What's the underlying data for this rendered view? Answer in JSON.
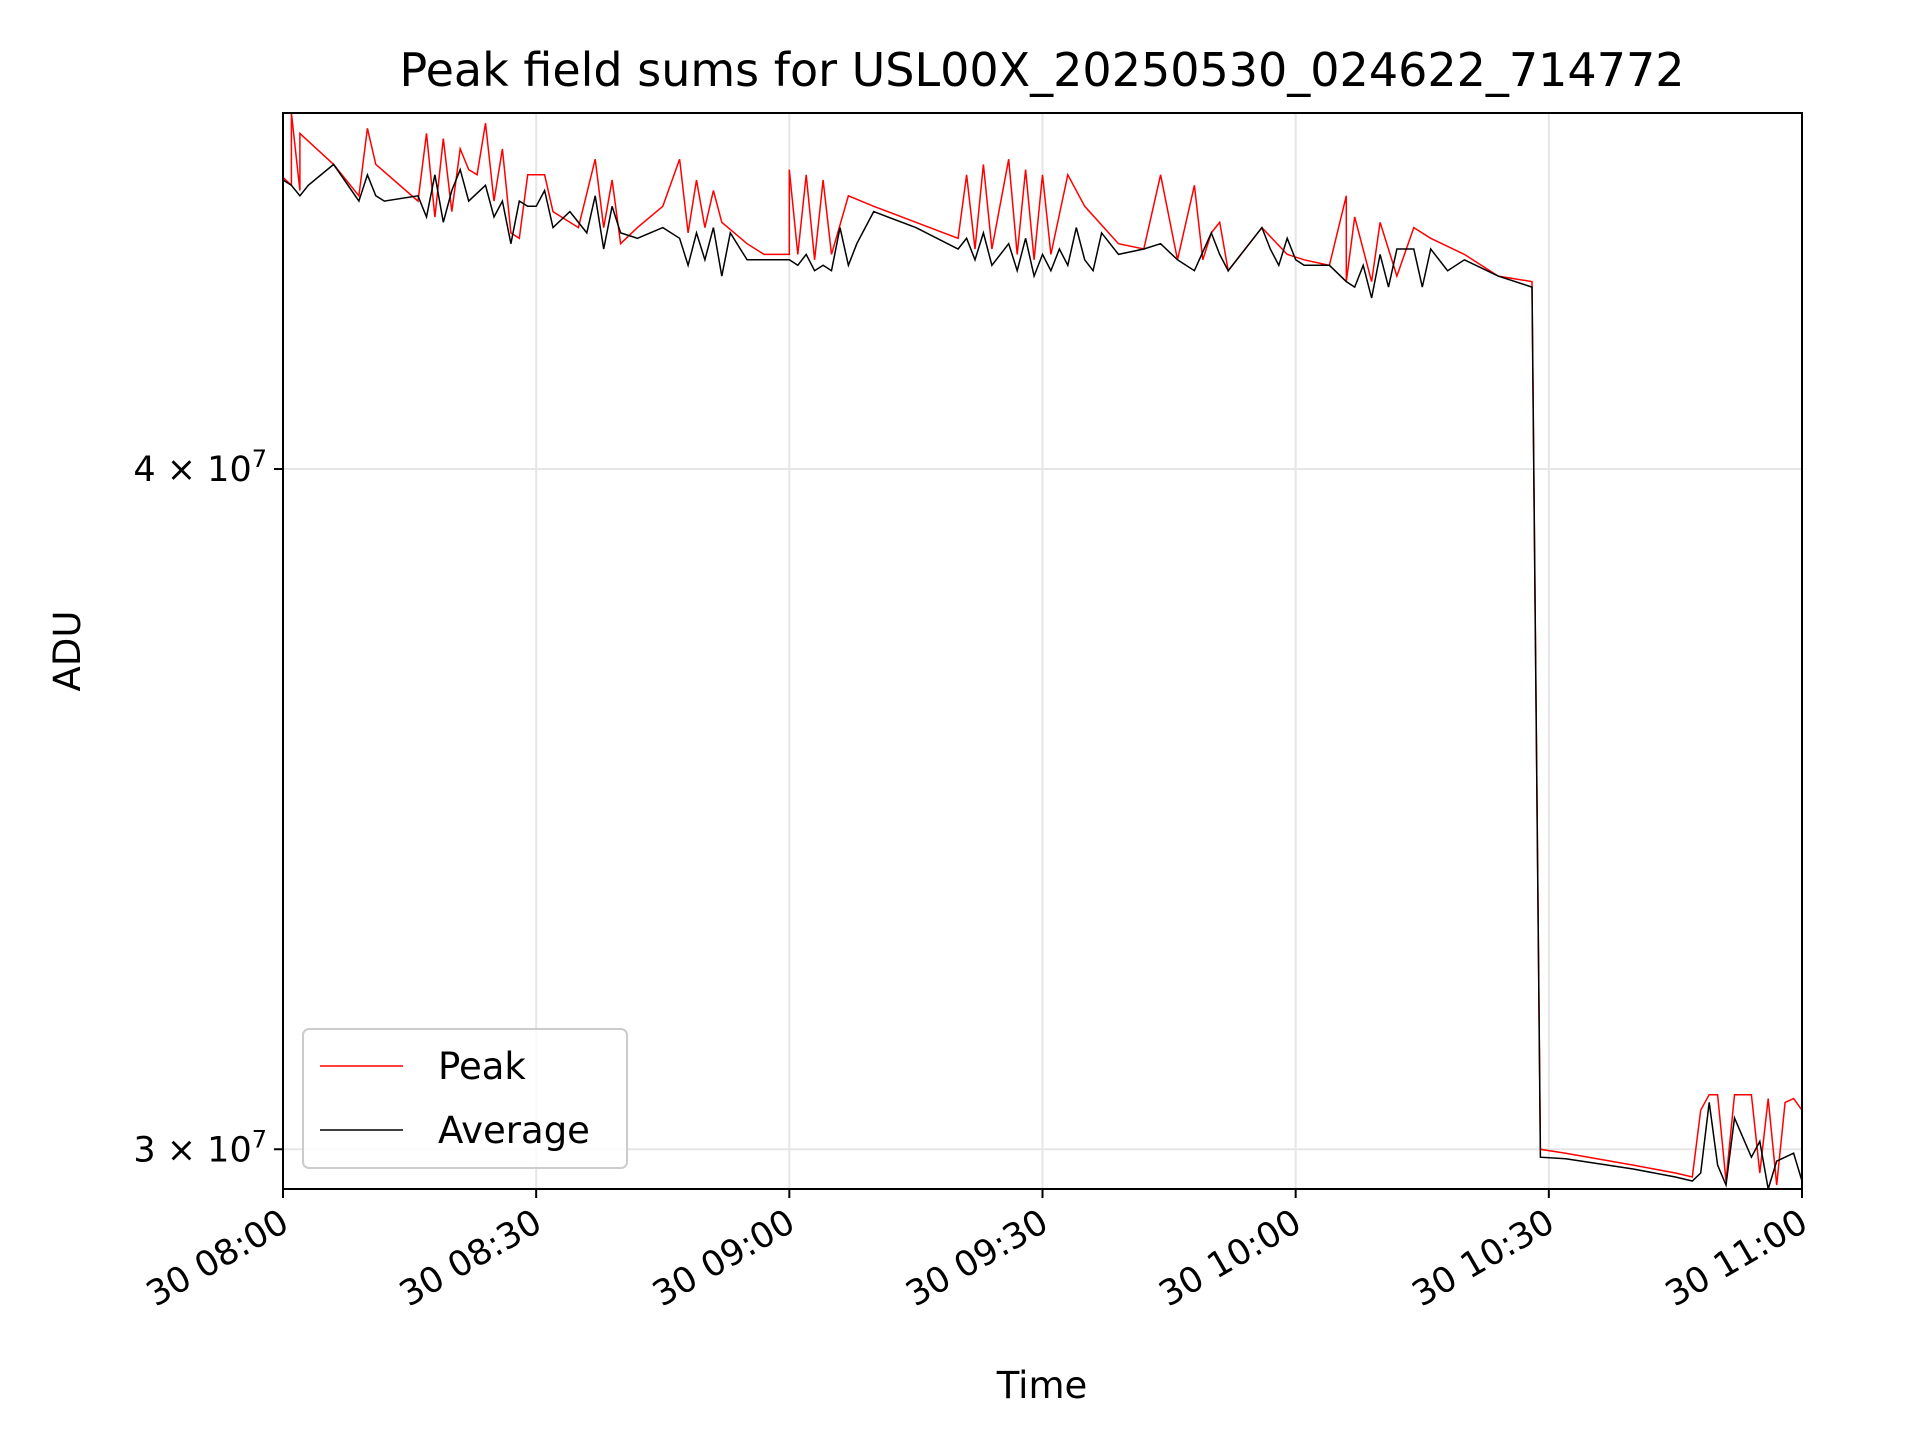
{
  "chart_data": {
    "type": "line",
    "title": "Peak field sums for USL00X_20250530_024622_714772",
    "xlabel": "Time",
    "ylabel": "ADU",
    "xlim": [
      "2025-05-30T08:00",
      "2025-05-30T11:00"
    ],
    "ylim": [
      29500000,
      46500000
    ],
    "yscale": "log",
    "x_ticks": [
      {
        "value": "2025-05-30T08:00",
        "label": "30 08:00"
      },
      {
        "value": "2025-05-30T08:30",
        "label": "30 08:30"
      },
      {
        "value": "2025-05-30T09:00",
        "label": "30 09:00"
      },
      {
        "value": "2025-05-30T09:30",
        "label": "30 09:30"
      },
      {
        "value": "2025-05-30T10:00",
        "label": "30 10:00"
      },
      {
        "value": "2025-05-30T10:30",
        "label": "30 10:30"
      },
      {
        "value": "2025-05-30T11:00",
        "label": "30 11:00"
      }
    ],
    "y_ticks": [
      {
        "value": 40000000,
        "mantissa": "4",
        "exponent": "7"
      },
      {
        "value": 30000000,
        "mantissa": "3",
        "exponent": "7"
      }
    ],
    "grid": true,
    "legend_position": "lower-left",
    "series": [
      {
        "name": "Peak",
        "color": "#ff0000",
        "points": [
          [
            "2025-05-30T08:00",
            45250000
          ],
          [
            "2025-05-30T08:01",
            45100000
          ],
          [
            "2025-05-30T08:01",
            46500000
          ],
          [
            "2025-05-30T08:02",
            45000000
          ],
          [
            "2025-05-30T08:02",
            46100000
          ],
          [
            "2025-05-30T08:06",
            45500000
          ],
          [
            "2025-05-30T08:09",
            44900000
          ],
          [
            "2025-05-30T08:10",
            46200000
          ],
          [
            "2025-05-30T08:11",
            45500000
          ],
          [
            "2025-05-30T08:16",
            44800000
          ],
          [
            "2025-05-30T08:17",
            46100000
          ],
          [
            "2025-05-30T08:18",
            44500000
          ],
          [
            "2025-05-30T08:19",
            46000000
          ],
          [
            "2025-05-30T08:20",
            44600000
          ],
          [
            "2025-05-30T08:21",
            45800000
          ],
          [
            "2025-05-30T08:22",
            45400000
          ],
          [
            "2025-05-30T08:23",
            45300000
          ],
          [
            "2025-05-30T08:24",
            46300000
          ],
          [
            "2025-05-30T08:25",
            44800000
          ],
          [
            "2025-05-30T08:26",
            45800000
          ],
          [
            "2025-05-30T08:27",
            44200000
          ],
          [
            "2025-05-30T08:28",
            44100000
          ],
          [
            "2025-05-30T08:29",
            45300000
          ],
          [
            "2025-05-30T08:31",
            45300000
          ],
          [
            "2025-05-30T08:32",
            44600000
          ],
          [
            "2025-05-30T08:35",
            44300000
          ],
          [
            "2025-05-30T08:37",
            45600000
          ],
          [
            "2025-05-30T08:38",
            44300000
          ],
          [
            "2025-05-30T08:39",
            45200000
          ],
          [
            "2025-05-30T08:40",
            44000000
          ],
          [
            "2025-05-30T08:42",
            44300000
          ],
          [
            "2025-05-30T08:45",
            44700000
          ],
          [
            "2025-05-30T08:47",
            45600000
          ],
          [
            "2025-05-30T08:48",
            44200000
          ],
          [
            "2025-05-30T08:49",
            45200000
          ],
          [
            "2025-05-30T08:50",
            44300000
          ],
          [
            "2025-05-30T08:51",
            45000000
          ],
          [
            "2025-05-30T08:52",
            44400000
          ],
          [
            "2025-05-30T08:55",
            44000000
          ],
          [
            "2025-05-30T08:57",
            43800000
          ],
          [
            "2025-05-30T09:00",
            43800000
          ],
          [
            "2025-05-30T09:00",
            45400000
          ],
          [
            "2025-05-30T09:01",
            43800000
          ],
          [
            "2025-05-30T09:02",
            45300000
          ],
          [
            "2025-05-30T09:03",
            43700000
          ],
          [
            "2025-05-30T09:04",
            45200000
          ],
          [
            "2025-05-30T09:05",
            43800000
          ],
          [
            "2025-05-30T09:07",
            44900000
          ],
          [
            "2025-05-30T09:10",
            44700000
          ],
          [
            "2025-05-30T09:15",
            44400000
          ],
          [
            "2025-05-30T09:20",
            44100000
          ],
          [
            "2025-05-30T09:21",
            45300000
          ],
          [
            "2025-05-30T09:22",
            43900000
          ],
          [
            "2025-05-30T09:23",
            45500000
          ],
          [
            "2025-05-30T09:24",
            43900000
          ],
          [
            "2025-05-30T09:26",
            45600000
          ],
          [
            "2025-05-30T09:27",
            43800000
          ],
          [
            "2025-05-30T09:28",
            45400000
          ],
          [
            "2025-05-30T09:29",
            43700000
          ],
          [
            "2025-05-30T09:30",
            45300000
          ],
          [
            "2025-05-30T09:31",
            43800000
          ],
          [
            "2025-05-30T09:33",
            45300000
          ],
          [
            "2025-05-30T09:35",
            44700000
          ],
          [
            "2025-05-30T09:39",
            44000000
          ],
          [
            "2025-05-30T09:42",
            43900000
          ],
          [
            "2025-05-30T09:44",
            45300000
          ],
          [
            "2025-05-30T09:46",
            43700000
          ],
          [
            "2025-05-30T09:48",
            45100000
          ],
          [
            "2025-05-30T09:49",
            43700000
          ],
          [
            "2025-05-30T09:50",
            44200000
          ],
          [
            "2025-05-30T09:51",
            44400000
          ],
          [
            "2025-05-30T09:52",
            43500000
          ],
          [
            "2025-05-30T09:56",
            44300000
          ],
          [
            "2025-05-30T09:59",
            43800000
          ],
          [
            "2025-05-30T10:01",
            43700000
          ],
          [
            "2025-05-30T10:04",
            43600000
          ],
          [
            "2025-05-30T10:06",
            44900000
          ],
          [
            "2025-05-30T10:06",
            43300000
          ],
          [
            "2025-05-30T10:07",
            44500000
          ],
          [
            "2025-05-30T10:09",
            43300000
          ],
          [
            "2025-05-30T10:10",
            44400000
          ],
          [
            "2025-05-30T10:12",
            43400000
          ],
          [
            "2025-05-30T10:14",
            44300000
          ],
          [
            "2025-05-30T10:16",
            44100000
          ],
          [
            "2025-05-30T10:20",
            43800000
          ],
          [
            "2025-05-30T10:24",
            43400000
          ],
          [
            "2025-05-30T10:28",
            43300000
          ],
          [
            "2025-05-30T10:29",
            30000000
          ],
          [
            "2025-05-30T10:32",
            29950000
          ],
          [
            "2025-05-30T10:40",
            29800000
          ],
          [
            "2025-05-30T10:45",
            29700000
          ],
          [
            "2025-05-30T10:47",
            29650000
          ],
          [
            "2025-05-30T10:48",
            30500000
          ],
          [
            "2025-05-30T10:49",
            30700000
          ],
          [
            "2025-05-30T10:50",
            30700000
          ],
          [
            "2025-05-30T10:51",
            29600000
          ],
          [
            "2025-05-30T10:52",
            30700000
          ],
          [
            "2025-05-30T10:54",
            30700000
          ],
          [
            "2025-05-30T10:55",
            29700000
          ],
          [
            "2025-05-30T10:56",
            30650000
          ],
          [
            "2025-05-30T10:57",
            29550000
          ],
          [
            "2025-05-30T10:58",
            30600000
          ],
          [
            "2025-05-30T10:59",
            30650000
          ],
          [
            "2025-05-30T11:00",
            30500000
          ]
        ]
      },
      {
        "name": "Average",
        "color": "#000000",
        "points": [
          [
            "2025-05-30T08:00",
            45200000
          ],
          [
            "2025-05-30T08:01",
            45100000
          ],
          [
            "2025-05-30T08:02",
            44900000
          ],
          [
            "2025-05-30T08:03",
            45100000
          ],
          [
            "2025-05-30T08:06",
            45500000
          ],
          [
            "2025-05-30T08:09",
            44800000
          ],
          [
            "2025-05-30T08:10",
            45300000
          ],
          [
            "2025-05-30T08:11",
            44900000
          ],
          [
            "2025-05-30T08:12",
            44800000
          ],
          [
            "2025-05-30T08:16",
            44900000
          ],
          [
            "2025-05-30T08:17",
            44500000
          ],
          [
            "2025-05-30T08:18",
            45300000
          ],
          [
            "2025-05-30T08:19",
            44400000
          ],
          [
            "2025-05-30T08:20",
            45000000
          ],
          [
            "2025-05-30T08:21",
            45400000
          ],
          [
            "2025-05-30T08:22",
            44800000
          ],
          [
            "2025-05-30T08:24",
            45100000
          ],
          [
            "2025-05-30T08:25",
            44500000
          ],
          [
            "2025-05-30T08:26",
            44800000
          ],
          [
            "2025-05-30T08:27",
            44000000
          ],
          [
            "2025-05-30T08:28",
            44800000
          ],
          [
            "2025-05-30T08:29",
            44700000
          ],
          [
            "2025-05-30T08:30",
            44700000
          ],
          [
            "2025-05-30T08:31",
            45000000
          ],
          [
            "2025-05-30T08:32",
            44300000
          ],
          [
            "2025-05-30T08:34",
            44600000
          ],
          [
            "2025-05-30T08:36",
            44200000
          ],
          [
            "2025-05-30T08:37",
            44900000
          ],
          [
            "2025-05-30T08:38",
            43900000
          ],
          [
            "2025-05-30T08:39",
            44700000
          ],
          [
            "2025-05-30T08:40",
            44200000
          ],
          [
            "2025-05-30T08:42",
            44100000
          ],
          [
            "2025-05-30T08:45",
            44300000
          ],
          [
            "2025-05-30T08:47",
            44100000
          ],
          [
            "2025-05-30T08:48",
            43600000
          ],
          [
            "2025-05-30T08:49",
            44200000
          ],
          [
            "2025-05-30T08:50",
            43700000
          ],
          [
            "2025-05-30T08:51",
            44300000
          ],
          [
            "2025-05-30T08:52",
            43400000
          ],
          [
            "2025-05-30T08:53",
            44200000
          ],
          [
            "2025-05-30T08:55",
            43700000
          ],
          [
            "2025-05-30T08:57",
            43700000
          ],
          [
            "2025-05-30T09:00",
            43700000
          ],
          [
            "2025-05-30T09:01",
            43600000
          ],
          [
            "2025-05-30T09:02",
            43800000
          ],
          [
            "2025-05-30T09:03",
            43500000
          ],
          [
            "2025-05-30T09:04",
            43600000
          ],
          [
            "2025-05-30T09:05",
            43500000
          ],
          [
            "2025-05-30T09:06",
            44300000
          ],
          [
            "2025-05-30T09:07",
            43600000
          ],
          [
            "2025-05-30T09:08",
            44000000
          ],
          [
            "2025-05-30T09:10",
            44600000
          ],
          [
            "2025-05-30T09:15",
            44300000
          ],
          [
            "2025-05-30T09:20",
            43900000
          ],
          [
            "2025-05-30T09:21",
            44100000
          ],
          [
            "2025-05-30T09:22",
            43700000
          ],
          [
            "2025-05-30T09:23",
            44200000
          ],
          [
            "2025-05-30T09:24",
            43600000
          ],
          [
            "2025-05-30T09:26",
            44000000
          ],
          [
            "2025-05-30T09:27",
            43500000
          ],
          [
            "2025-05-30T09:28",
            44100000
          ],
          [
            "2025-05-30T09:29",
            43400000
          ],
          [
            "2025-05-30T09:30",
            43800000
          ],
          [
            "2025-05-30T09:31",
            43500000
          ],
          [
            "2025-05-30T09:32",
            43900000
          ],
          [
            "2025-05-30T09:33",
            43600000
          ],
          [
            "2025-05-30T09:34",
            44300000
          ],
          [
            "2025-05-30T09:35",
            43700000
          ],
          [
            "2025-05-30T09:36",
            43500000
          ],
          [
            "2025-05-30T09:37",
            44200000
          ],
          [
            "2025-05-30T09:39",
            43800000
          ],
          [
            "2025-05-30T09:42",
            43900000
          ],
          [
            "2025-05-30T09:44",
            44000000
          ],
          [
            "2025-05-30T09:46",
            43700000
          ],
          [
            "2025-05-30T09:48",
            43500000
          ],
          [
            "2025-05-30T09:50",
            44200000
          ],
          [
            "2025-05-30T09:51",
            43800000
          ],
          [
            "2025-05-30T09:52",
            43500000
          ],
          [
            "2025-05-30T09:56",
            44300000
          ],
          [
            "2025-05-30T09:57",
            43900000
          ],
          [
            "2025-05-30T09:58",
            43600000
          ],
          [
            "2025-05-30T09:59",
            44100000
          ],
          [
            "2025-05-30T10:00",
            43700000
          ],
          [
            "2025-05-30T10:01",
            43600000
          ],
          [
            "2025-05-30T10:04",
            43600000
          ],
          [
            "2025-05-30T10:06",
            43300000
          ],
          [
            "2025-05-30T10:07",
            43200000
          ],
          [
            "2025-05-30T10:08",
            43600000
          ],
          [
            "2025-05-30T10:09",
            43000000
          ],
          [
            "2025-05-30T10:10",
            43800000
          ],
          [
            "2025-05-30T10:11",
            43200000
          ],
          [
            "2025-05-30T10:12",
            43900000
          ],
          [
            "2025-05-30T10:14",
            43900000
          ],
          [
            "2025-05-30T10:15",
            43200000
          ],
          [
            "2025-05-30T10:16",
            43900000
          ],
          [
            "2025-05-30T10:18",
            43500000
          ],
          [
            "2025-05-30T10:20",
            43700000
          ],
          [
            "2025-05-30T10:24",
            43400000
          ],
          [
            "2025-05-30T10:28",
            43200000
          ],
          [
            "2025-05-30T10:29",
            29900000
          ],
          [
            "2025-05-30T10:32",
            29880000
          ],
          [
            "2025-05-30T10:40",
            29750000
          ],
          [
            "2025-05-30T10:45",
            29650000
          ],
          [
            "2025-05-30T10:47",
            29600000
          ],
          [
            "2025-05-30T10:48",
            29700000
          ],
          [
            "2025-05-30T10:49",
            30600000
          ],
          [
            "2025-05-30T10:50",
            29800000
          ],
          [
            "2025-05-30T10:51",
            29550000
          ],
          [
            "2025-05-30T10:52",
            30400000
          ],
          [
            "2025-05-30T10:54",
            29900000
          ],
          [
            "2025-05-30T10:55",
            30100000
          ],
          [
            "2025-05-30T10:56",
            29500000
          ],
          [
            "2025-05-30T10:57",
            29850000
          ],
          [
            "2025-05-30T10:58",
            29900000
          ],
          [
            "2025-05-30T10:59",
            29950000
          ],
          [
            "2025-05-30T11:00",
            29600000
          ]
        ]
      }
    ]
  }
}
